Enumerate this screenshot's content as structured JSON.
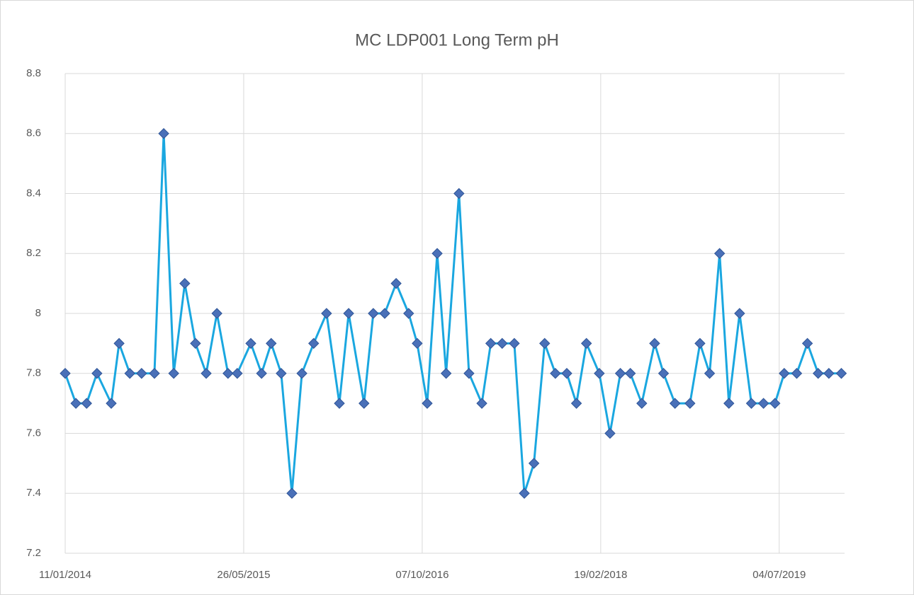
{
  "chart_data": {
    "type": "line",
    "title": "MC LDP001 Long Term pH",
    "x": [
      41650,
      41680,
      41710,
      41739,
      41779,
      41801,
      41831,
      41864,
      41900,
      41926,
      41954,
      41985,
      42015,
      42045,
      42075,
      42106,
      42132,
      42170,
      42200,
      42227,
      42255,
      42285,
      42313,
      42346,
      42382,
      42418,
      42444,
      42487,
      42513,
      42545,
      42577,
      42612,
      42636,
      42664,
      42692,
      42717,
      42753,
      42781,
      42817,
      42842,
      42874,
      42908,
      42936,
      42963,
      42993,
      43023,
      43055,
      43082,
      43110,
      43146,
      43176,
      43205,
      43233,
      43265,
      43301,
      43326,
      43358,
      43400,
      43428,
      43455,
      43483,
      43509,
      43539,
      43572,
      43606,
      43638,
      43664,
      43699,
      43729,
      43759,
      43789,
      43824
    ],
    "series": [
      {
        "name": "pH",
        "color": "#1aa7e0",
        "marker_color": "#4a70b8",
        "values": [
          7.8,
          7.7,
          7.7,
          7.8,
          7.7,
          7.9,
          7.8,
          7.8,
          7.8,
          8.6,
          7.8,
          8.1,
          7.9,
          7.8,
          8,
          7.8,
          7.8,
          7.9,
          7.8,
          7.9,
          7.8,
          7.4,
          7.8,
          7.9,
          8,
          7.7,
          8,
          7.7,
          8,
          8,
          8.1,
          8,
          7.9,
          7.7,
          8.2,
          7.8,
          8.4,
          7.8,
          7.7,
          7.9,
          7.9,
          7.9,
          7.4,
          7.5,
          7.9,
          7.8,
          7.8,
          7.7,
          7.9,
          7.8,
          7.6,
          7.8,
          7.8,
          7.7,
          7.9,
          7.8,
          7.7,
          7.7,
          7.9,
          7.8,
          8.2,
          7.7,
          8,
          7.7,
          7.7,
          7.7,
          7.8,
          7.8,
          7.9,
          7.8,
          7.8,
          7.8
        ]
      }
    ],
    "xlim": [
      41650,
      43833
    ],
    "xticks": [
      {
        "value": 41650,
        "label": "11/01/2014"
      },
      {
        "value": 42150,
        "label": "26/05/2015"
      },
      {
        "value": 42650,
        "label": "07/10/2016"
      },
      {
        "value": 43150,
        "label": "19/02/2018"
      },
      {
        "value": 43650,
        "label": "04/07/2019"
      }
    ],
    "ylim": [
      7.2,
      8.8
    ],
    "yticks": [
      7.2,
      7.4,
      7.6,
      7.8,
      8,
      8.2,
      8.4,
      8.6,
      8.8
    ],
    "grid": true
  }
}
